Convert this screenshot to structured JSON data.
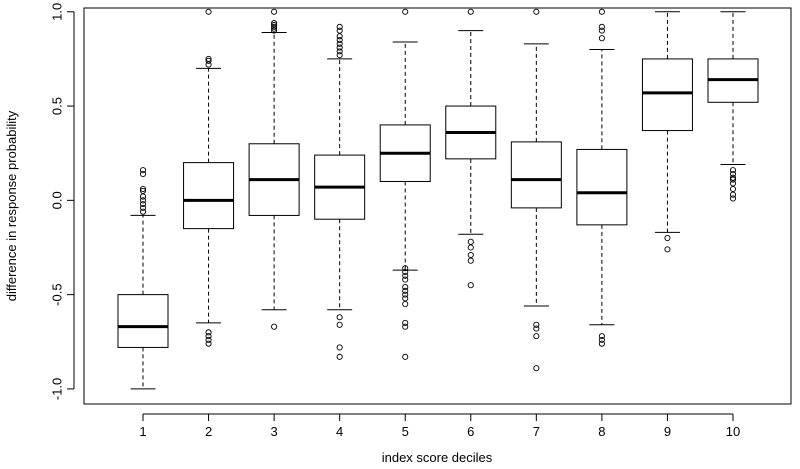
{
  "chart_data": {
    "type": "boxplot",
    "title": "",
    "xlabel": "index score deciles",
    "ylabel": "difference in response probability",
    "ylim": [
      -1.08,
      1.02
    ],
    "y_ticks": [
      "-1.0",
      "-0.5",
      "0.0",
      "0.5",
      "1.0"
    ],
    "grid": false,
    "categories": [
      "1",
      "2",
      "3",
      "4",
      "5",
      "6",
      "7",
      "8",
      "9",
      "10"
    ],
    "boxes": [
      {
        "label": "1",
        "whisker_low": -1.0,
        "q1": -0.78,
        "median": -0.67,
        "q3": -0.5,
        "whisker_high": -0.08,
        "outliers": [
          -0.06,
          -0.04,
          -0.02,
          0.0,
          0.02,
          0.05,
          0.06,
          0.14,
          0.16
        ]
      },
      {
        "label": "2",
        "whisker_low": -0.65,
        "q1": -0.15,
        "median": 0.0,
        "q3": 0.2,
        "whisker_high": 0.7,
        "outliers": [
          -0.7,
          -0.72,
          -0.74,
          -0.76,
          0.72,
          0.74,
          0.75,
          1.0
        ]
      },
      {
        "label": "3",
        "whisker_low": -0.58,
        "q1": -0.08,
        "median": 0.11,
        "q3": 0.3,
        "whisker_high": 0.89,
        "outliers": [
          -0.67,
          0.9,
          0.91,
          0.92,
          0.93,
          0.94,
          1.0
        ]
      },
      {
        "label": "4",
        "whisker_low": -0.58,
        "q1": -0.1,
        "median": 0.07,
        "q3": 0.24,
        "whisker_high": 0.75,
        "outliers": [
          -0.62,
          -0.66,
          -0.78,
          -0.83,
          0.77,
          0.79,
          0.81,
          0.83,
          0.85,
          0.87,
          0.9,
          0.92
        ]
      },
      {
        "label": "5",
        "whisker_low": -0.37,
        "q1": 0.1,
        "median": 0.25,
        "q3": 0.4,
        "whisker_high": 0.84,
        "outliers": [
          -0.36,
          -0.38,
          -0.4,
          -0.42,
          -0.46,
          -0.48,
          -0.5,
          -0.52,
          -0.55,
          -0.65,
          -0.67,
          -0.83,
          1.0
        ]
      },
      {
        "label": "6",
        "whisker_low": -0.18,
        "q1": 0.22,
        "median": 0.36,
        "q3": 0.5,
        "whisker_high": 0.9,
        "outliers": [
          -0.22,
          -0.25,
          -0.29,
          -0.32,
          -0.45,
          1.0
        ]
      },
      {
        "label": "7",
        "whisker_low": -0.56,
        "q1": -0.04,
        "median": 0.11,
        "q3": 0.31,
        "whisker_high": 0.83,
        "outliers": [
          -0.66,
          -0.68,
          -0.72,
          -0.89,
          1.0
        ]
      },
      {
        "label": "8",
        "whisker_low": -0.66,
        "q1": -0.13,
        "median": 0.04,
        "q3": 0.27,
        "whisker_high": 0.8,
        "outliers": [
          -0.72,
          -0.74,
          -0.76,
          0.86,
          0.9,
          0.92,
          1.0
        ]
      },
      {
        "label": "9",
        "whisker_low": -0.17,
        "q1": 0.37,
        "median": 0.57,
        "q3": 0.75,
        "whisker_high": 1.0,
        "outliers": [
          -0.2,
          -0.26
        ]
      },
      {
        "label": "10",
        "whisker_low": 0.19,
        "q1": 0.52,
        "median": 0.64,
        "q3": 0.75,
        "whisker_high": 1.0,
        "outliers": [
          0.16,
          0.14,
          0.12,
          0.11,
          0.09,
          0.06,
          0.03,
          0.01
        ]
      }
    ]
  }
}
